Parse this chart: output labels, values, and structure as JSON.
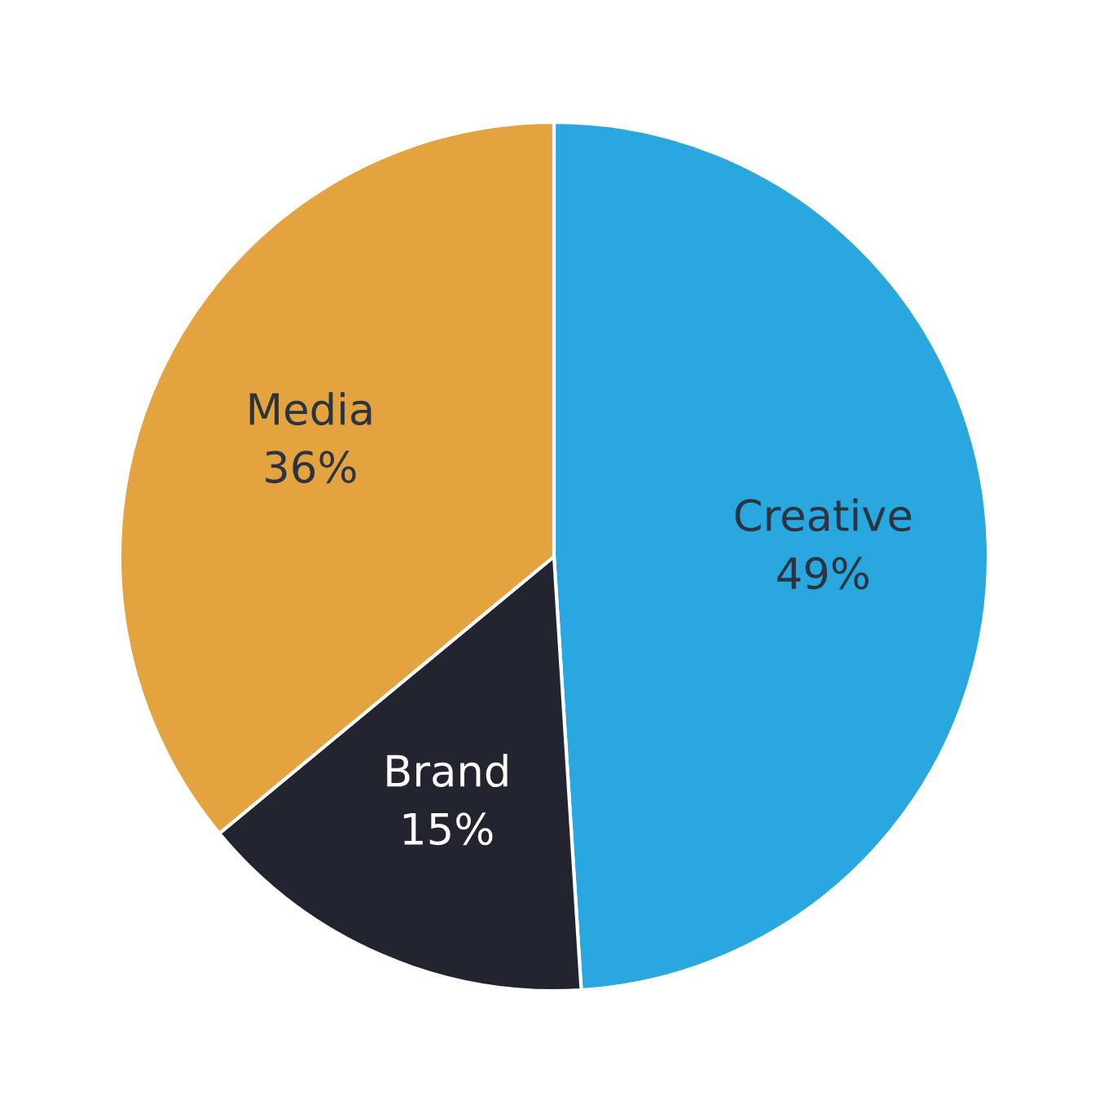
{
  "chart_data": {
    "type": "pie",
    "categories": [
      "Creative",
      "Brand",
      "Media"
    ],
    "values": [
      49,
      15,
      36
    ],
    "value_labels": [
      "49%",
      "15%",
      "36%"
    ],
    "colors": [
      "#29a8e0",
      "#22252f",
      "#e3a33f"
    ]
  }
}
